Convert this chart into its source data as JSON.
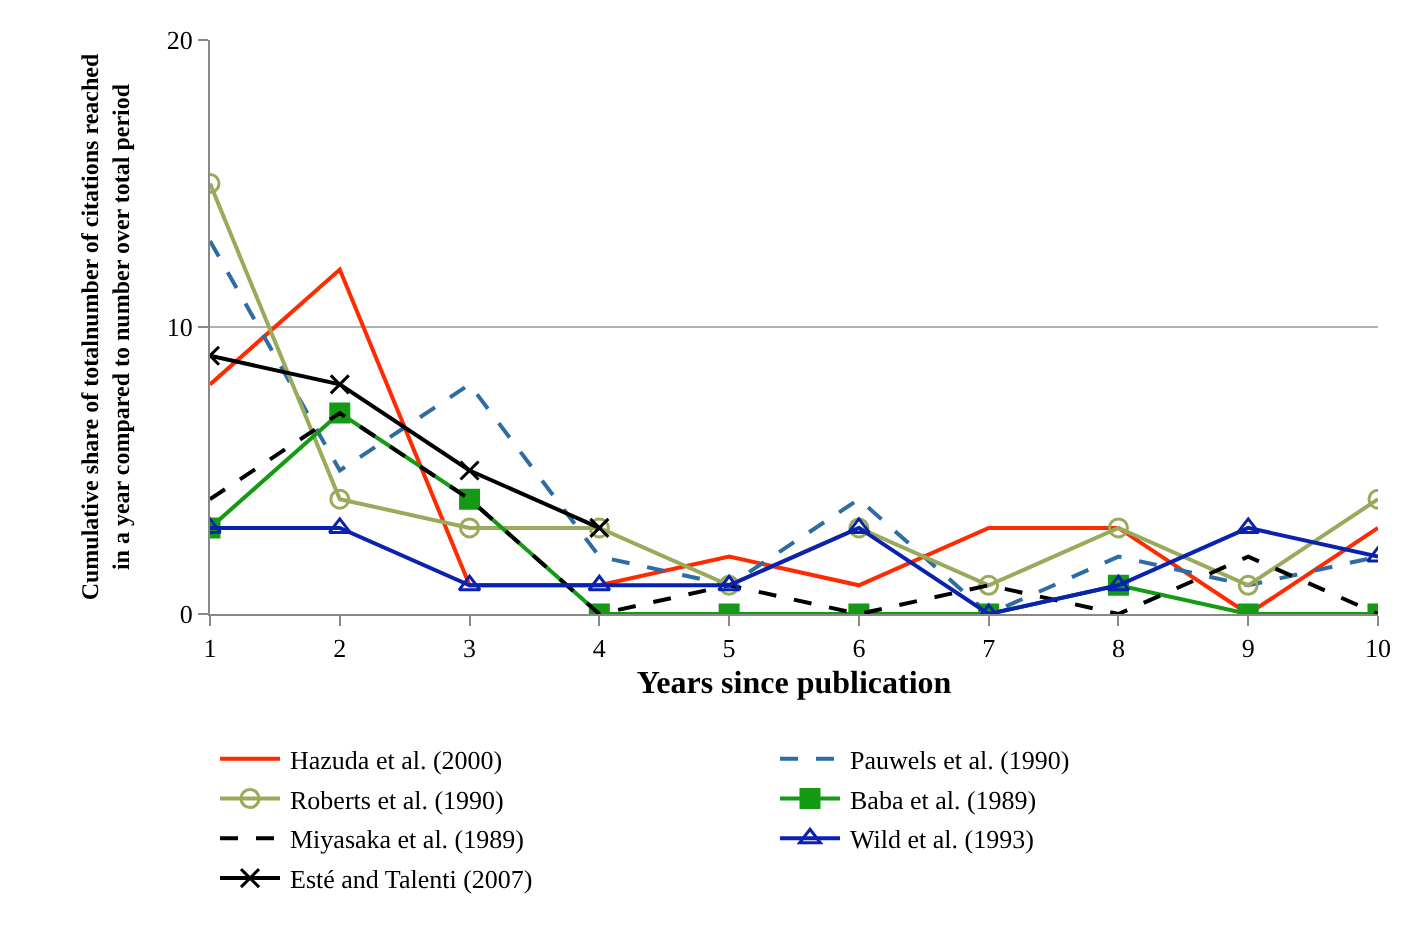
{
  "chart_data": {
    "type": "line",
    "xlabel": "Years since publication",
    "ylabel": "Cumulative share of totalnumber of citations reached\nin a year compared to number over total period",
    "x": [
      1,
      2,
      3,
      4,
      5,
      6,
      7,
      8,
      9,
      10
    ],
    "xlim": [
      1,
      10
    ],
    "xticks": [
      1,
      2,
      3,
      4,
      5,
      6,
      7,
      8,
      9,
      10
    ],
    "ylim": [
      0,
      20
    ],
    "yticks": [
      0,
      10,
      20
    ],
    "grid": "y",
    "legend": "bottom",
    "series": [
      {
        "name": "Hazuda et al. (2000)",
        "color": "#ff2a00",
        "marker": "none",
        "line_style": "solid",
        "values": [
          8,
          12,
          1,
          1,
          2,
          1,
          3,
          3,
          0,
          3
        ]
      },
      {
        "name": "Pauwels et al. (1990)",
        "color": "#2e6ca4",
        "marker": "none",
        "line_style": "dashed",
        "values": [
          13,
          5,
          8,
          2,
          1,
          4,
          0,
          2,
          1,
          2
        ]
      },
      {
        "name": "Roberts et al. (1990)",
        "color": "#9aaa5a",
        "marker": "circle",
        "line_style": "solid",
        "values": [
          15,
          4,
          3,
          3,
          1,
          3,
          1,
          3,
          1,
          4
        ]
      },
      {
        "name": "Baba et al. (1989)",
        "color": "#159a15",
        "marker": "square",
        "line_style": "solid",
        "values": [
          3,
          7,
          4,
          0,
          0,
          0,
          0,
          1,
          0,
          0
        ]
      },
      {
        "name": "Miyasaka et al. (1989)",
        "color": "#000000",
        "marker": "none",
        "line_style": "dashed",
        "values": [
          4,
          7,
          4,
          0,
          1,
          0,
          1,
          0,
          2,
          0
        ]
      },
      {
        "name": "Wild et al. (1993)",
        "color": "#0a22b0",
        "marker": "triangle",
        "line_style": "solid",
        "values": [
          3,
          3,
          1,
          1,
          1,
          3,
          0,
          1,
          3,
          2
        ]
      },
      {
        "name": "Esté and Talenti (2007)",
        "color": "#000000",
        "marker": "cross",
        "line_style": "solid",
        "values": [
          9,
          8,
          5,
          3,
          null,
          null,
          null,
          null,
          null,
          null
        ]
      }
    ]
  }
}
